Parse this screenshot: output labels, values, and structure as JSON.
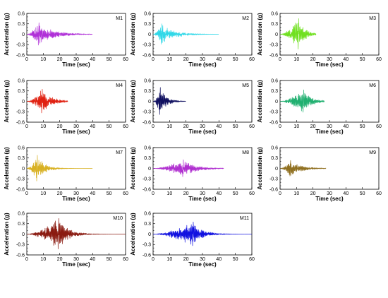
{
  "chart_data": {
    "type": "line",
    "xlabel": "Time (sec)",
    "ylabel": "Acceleration (g)",
    "xlim": [
      0,
      60
    ],
    "ylim": [
      -0.6,
      0.6
    ],
    "xticks": [
      0,
      10,
      20,
      30,
      40,
      50,
      60
    ],
    "yticks": [
      -0.6,
      -0.5,
      -0.4,
      -0.3,
      -0.2,
      -0.1,
      0,
      0.1,
      0.2,
      0.3,
      0.4,
      0.5,
      0.6
    ],
    "ytick_labels": [
      "-0.6",
      "",
      "",
      "-0.3",
      "",
      "",
      "0",
      "",
      "",
      "0.3",
      "",
      "",
      "0.6"
    ],
    "grid": false,
    "panels": [
      {
        "title": "M1",
        "color": "#b030d8",
        "duration": 40,
        "peak_time": 7,
        "pga": 0.33,
        "decay": 9
      },
      {
        "title": "M2",
        "color": "#30d8e8",
        "duration": 40,
        "peak_time": 5,
        "pga": 0.3,
        "decay": 8
      },
      {
        "title": "M3",
        "color": "#70e020",
        "duration": 22,
        "peak_time": 11,
        "pga": 0.45,
        "decay": 4
      },
      {
        "title": "M4",
        "color": "#e02010",
        "duration": 25,
        "peak_time": 9,
        "pga": 0.35,
        "decay": 6
      },
      {
        "title": "M5",
        "color": "#101060",
        "duration": 20,
        "peak_time": 4,
        "pga": 0.4,
        "decay": 4
      },
      {
        "title": "M6",
        "color": "#20b070",
        "duration": 27,
        "peak_time": 14,
        "pga": 0.33,
        "decay": 5
      },
      {
        "title": "M7",
        "color": "#d8b020",
        "duration": 40,
        "peak_time": 6,
        "pga": 0.38,
        "decay": 5
      },
      {
        "title": "M8",
        "color": "#b030d0",
        "duration": 43,
        "peak_time": 18,
        "pga": 0.25,
        "decay": 8
      },
      {
        "title": "M9",
        "color": "#907020",
        "duration": 28,
        "peak_time": 6,
        "pga": 0.23,
        "decay": 7
      },
      {
        "title": "M10",
        "color": "#8a1a10",
        "duration": 60,
        "peak_time": 19,
        "pga": 0.45,
        "decay": 6
      },
      {
        "title": "M11",
        "color": "#1010e0",
        "duration": 60,
        "peak_time": 24,
        "pga": 0.35,
        "decay": 6
      }
    ]
  }
}
